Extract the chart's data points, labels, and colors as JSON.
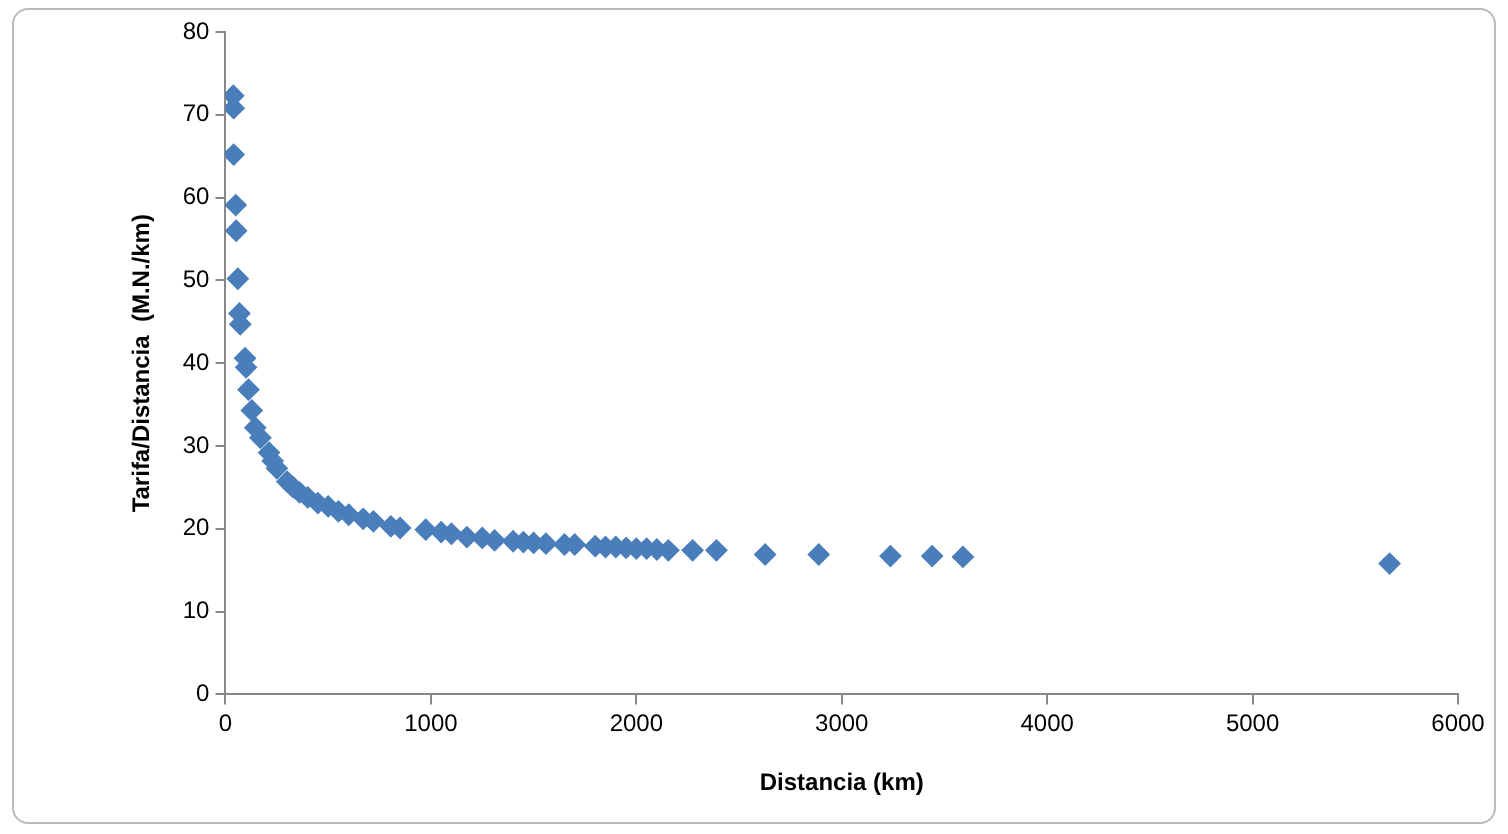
{
  "chart_data": {
    "type": "scatter",
    "xlabel": "Distancia (km)",
    "ylabel": "Tarifa/Distancia  (M.N./km)",
    "marker": "diamond",
    "grid": false,
    "legend": false,
    "x": [
      38,
      40,
      40,
      50,
      52,
      60,
      68,
      72,
      95,
      100,
      112,
      128,
      145,
      170,
      212,
      230,
      250,
      300,
      330,
      360,
      400,
      450,
      500,
      550,
      600,
      670,
      720,
      805,
      850,
      975,
      1050,
      1100,
      1175,
      1250,
      1310,
      1400,
      1450,
      1500,
      1560,
      1650,
      1700,
      1800,
      1850,
      1900,
      1950,
      2000,
      2050,
      2100,
      2156,
      2274,
      2390,
      2627,
      2888,
      3237,
      3440,
      3590,
      5667
    ],
    "series": [
      {
        "color": "#4a7ebb",
        "values": [
          72.3,
          70.8,
          65.2,
          59.1,
          56.0,
          50.2,
          46.0,
          44.7,
          40.6,
          39.5,
          36.8,
          34.3,
          32.2,
          31,
          29.2,
          28.2,
          27.3,
          25.7,
          25.0,
          24.4,
          23.8,
          23.1,
          22.7,
          22.1,
          21.7,
          21.2,
          20.9,
          20.3,
          20.1,
          19.9,
          19.6,
          19.4,
          19.0,
          18.9,
          18.6,
          18.5,
          18.4,
          18.3,
          18.2,
          18.1,
          18.1,
          17.9,
          17.8,
          17.8,
          17.7,
          17.6,
          17.6,
          17.5,
          17.4,
          17.4,
          17.4,
          16.9,
          16.9,
          16.7,
          16.7,
          16.6,
          15.8
        ]
      }
    ],
    "xlim": [
      0,
      6000
    ],
    "xticks": [
      0,
      1000,
      2000,
      3000,
      4000,
      5000,
      6000
    ],
    "ylim": [
      0,
      80
    ],
    "yticks": [
      0,
      10,
      20,
      30,
      40,
      50,
      60,
      70,
      80
    ]
  }
}
